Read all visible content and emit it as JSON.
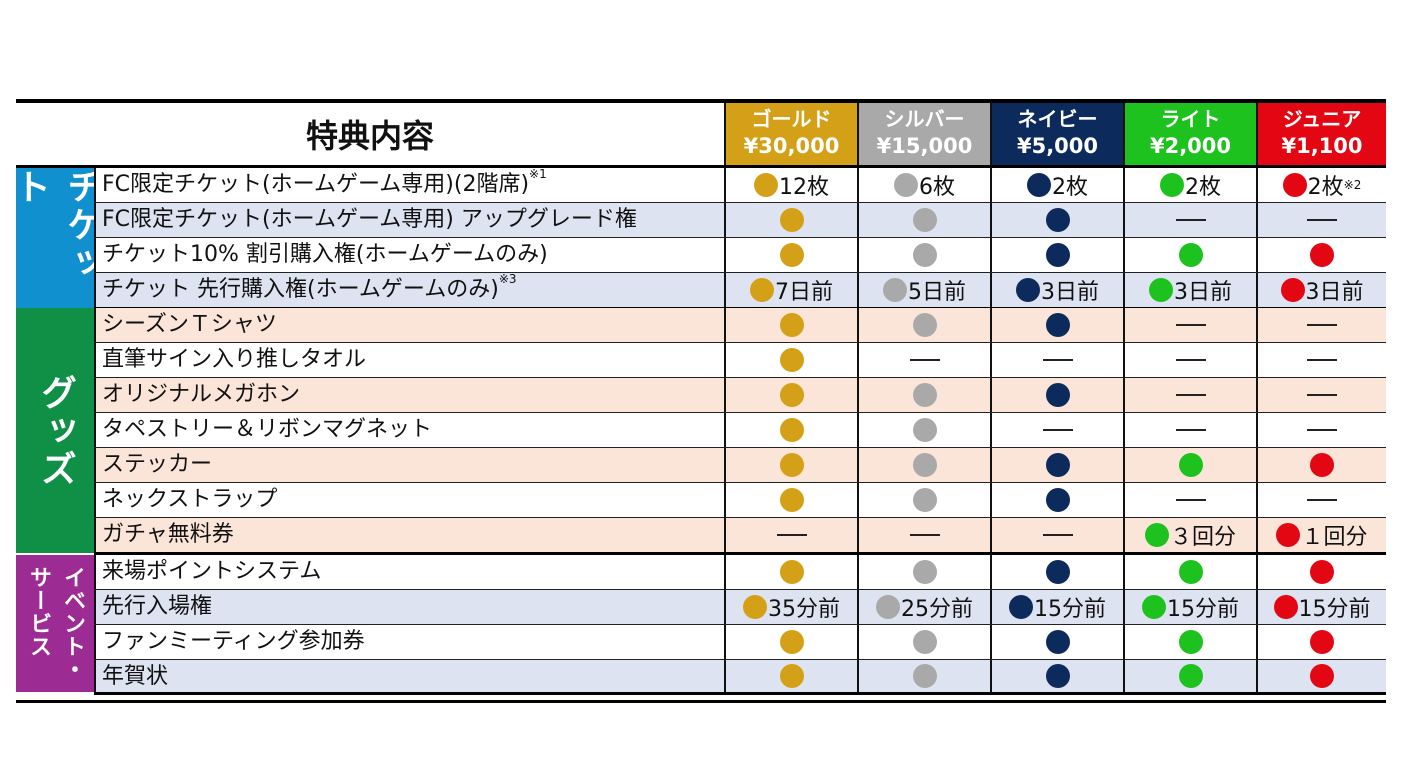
{
  "header": {
    "title": "特典内容",
    "tiers": [
      {
        "name": "ゴールド",
        "price": "¥30,000",
        "color": "#d4a017"
      },
      {
        "name": "シルバー",
        "price": "¥15,000",
        "color": "#a9a9a9"
      },
      {
        "name": "ネイビー",
        "price": "¥5,000",
        "color": "#0d2a5c"
      },
      {
        "name": "ライト",
        "price": "¥2,000",
        "color": "#1ec21e"
      },
      {
        "name": "ジュニア",
        "price": "¥1,100",
        "color": "#e30613"
      }
    ]
  },
  "colors": {
    "ticket_section": "#1190cf",
    "goods_section": "#0f9046",
    "event_section": "#9c2b93",
    "row_blue": "#dde3f1",
    "row_orange": "#fbe5d8",
    "row_white": "#ffffff"
  },
  "sections": [
    {
      "key": "ticket",
      "label": "チケット",
      "color": "#1190cf",
      "rows": 4
    },
    {
      "key": "goods",
      "label": "グッズ",
      "color": "#0f9046",
      "rows": 7
    },
    {
      "key": "event",
      "label": "イベント・サービス",
      "label_col1": "イベント・",
      "label_col2": "サービス",
      "color": "#9c2b93",
      "rows": 4
    }
  ],
  "rows": [
    {
      "label": "FC限定チケット(ホームゲーム専用)(2階席)",
      "note": "※1",
      "bg": "white",
      "cells": [
        {
          "t": "dot",
          "text": "12枚"
        },
        {
          "t": "dot",
          "text": "6枚"
        },
        {
          "t": "dot",
          "text": "2枚"
        },
        {
          "t": "dot",
          "text": "2枚"
        },
        {
          "t": "dot",
          "text": "2枚",
          "note": "※2"
        }
      ]
    },
    {
      "label": "FC限定チケット(ホームゲーム専用) アップグレード権",
      "note": "",
      "bg": "blue",
      "cells": [
        {
          "t": "dot"
        },
        {
          "t": "dot"
        },
        {
          "t": "dot"
        },
        {
          "t": "dash"
        },
        {
          "t": "dash"
        }
      ]
    },
    {
      "label": "チケット10% 割引購入権(ホームゲームのみ)",
      "note": "",
      "bg": "white",
      "cells": [
        {
          "t": "dot"
        },
        {
          "t": "dot"
        },
        {
          "t": "dot"
        },
        {
          "t": "dot"
        },
        {
          "t": "dot"
        }
      ]
    },
    {
      "label": "チケット 先行購入権(ホームゲームのみ)",
      "note": "※3",
      "bg": "blue",
      "cells": [
        {
          "t": "dot",
          "text": "7日前"
        },
        {
          "t": "dot",
          "text": "5日前"
        },
        {
          "t": "dot",
          "text": "3日前"
        },
        {
          "t": "dot",
          "text": "3日前"
        },
        {
          "t": "dot",
          "text": "3日前"
        }
      ]
    },
    {
      "label": "シーズンＴシャツ",
      "note": "",
      "bg": "orange",
      "cells": [
        {
          "t": "dot"
        },
        {
          "t": "dot"
        },
        {
          "t": "dot"
        },
        {
          "t": "dash"
        },
        {
          "t": "dash"
        }
      ]
    },
    {
      "label": "直筆サイン入り推しタオル",
      "note": "",
      "bg": "white",
      "cells": [
        {
          "t": "dot"
        },
        {
          "t": "dash"
        },
        {
          "t": "dash"
        },
        {
          "t": "dash"
        },
        {
          "t": "dash"
        }
      ]
    },
    {
      "label": "オリジナルメガホン",
      "note": "",
      "bg": "orange",
      "cells": [
        {
          "t": "dot"
        },
        {
          "t": "dot"
        },
        {
          "t": "dot"
        },
        {
          "t": "dash"
        },
        {
          "t": "dash"
        }
      ]
    },
    {
      "label": "タペストリー＆リボンマグネット",
      "note": "",
      "bg": "white",
      "cells": [
        {
          "t": "dot"
        },
        {
          "t": "dot"
        },
        {
          "t": "dash"
        },
        {
          "t": "dash"
        },
        {
          "t": "dash"
        }
      ]
    },
    {
      "label": "ステッカー",
      "note": "",
      "bg": "orange",
      "cells": [
        {
          "t": "dot"
        },
        {
          "t": "dot"
        },
        {
          "t": "dot"
        },
        {
          "t": "dot"
        },
        {
          "t": "dot"
        }
      ]
    },
    {
      "label": "ネックストラップ",
      "note": "",
      "bg": "white",
      "cells": [
        {
          "t": "dot"
        },
        {
          "t": "dot"
        },
        {
          "t": "dot"
        },
        {
          "t": "dash"
        },
        {
          "t": "dash"
        }
      ]
    },
    {
      "label": "ガチャ無料券",
      "note": "",
      "bg": "orange",
      "cells": [
        {
          "t": "dash"
        },
        {
          "t": "dash"
        },
        {
          "t": "dash"
        },
        {
          "t": "dot",
          "text": "３回分"
        },
        {
          "t": "dot",
          "text": "１回分"
        }
      ]
    },
    {
      "label": "来場ポイントシステム",
      "note": "",
      "bg": "white",
      "cells": [
        {
          "t": "dot"
        },
        {
          "t": "dot"
        },
        {
          "t": "dot"
        },
        {
          "t": "dot"
        },
        {
          "t": "dot"
        }
      ]
    },
    {
      "label": "先行入場権",
      "note": "",
      "bg": "blue",
      "cells": [
        {
          "t": "dot",
          "text": "35分前"
        },
        {
          "t": "dot",
          "text": "25分前"
        },
        {
          "t": "dot",
          "text": "15分前"
        },
        {
          "t": "dot",
          "text": "15分前"
        },
        {
          "t": "dot",
          "text": "15分前"
        }
      ]
    },
    {
      "label": "ファンミーティング参加券",
      "note": "",
      "bg": "white",
      "cells": [
        {
          "t": "dot"
        },
        {
          "t": "dot"
        },
        {
          "t": "dot"
        },
        {
          "t": "dot"
        },
        {
          "t": "dot"
        }
      ]
    },
    {
      "label": "年賀状",
      "note": "",
      "bg": "blue",
      "cells": [
        {
          "t": "dot"
        },
        {
          "t": "dot"
        },
        {
          "t": "dot"
        },
        {
          "t": "dot"
        },
        {
          "t": "dot"
        }
      ]
    }
  ]
}
